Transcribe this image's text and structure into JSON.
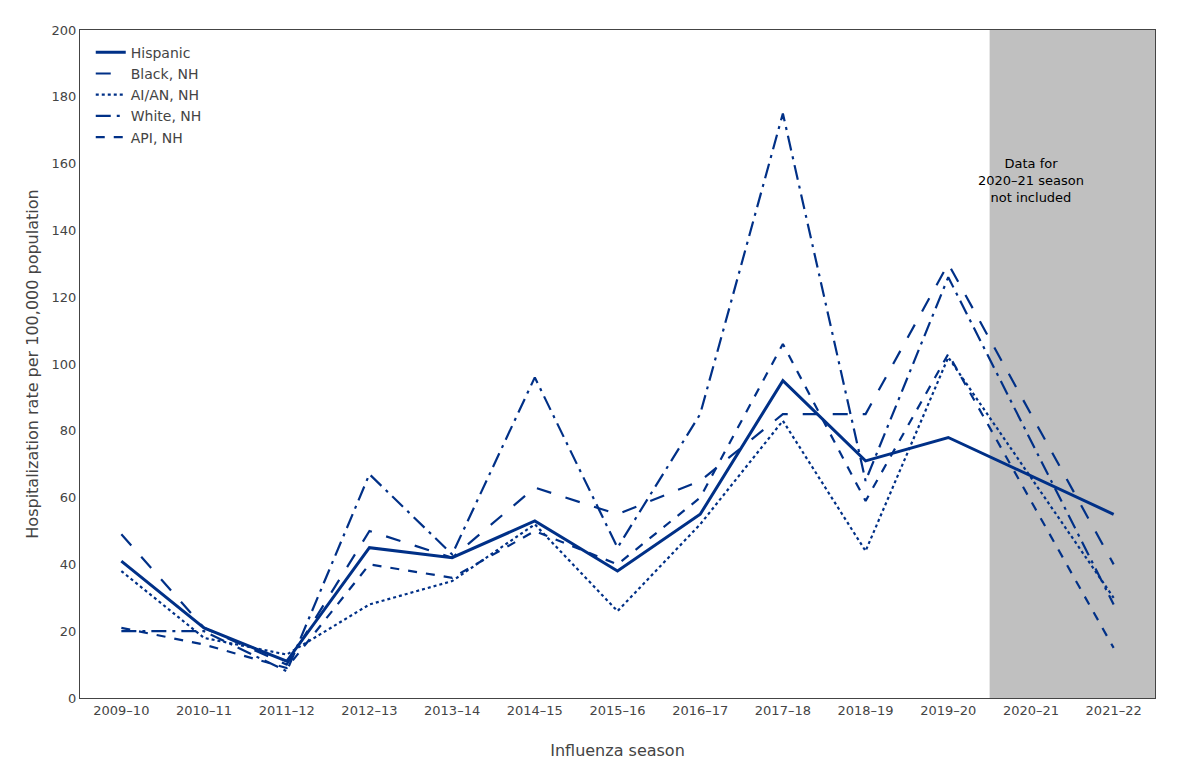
{
  "chart_data": {
    "type": "line",
    "xlabel": "Influenza season",
    "ylabel": "Hospitalization rate per 100,000 population",
    "categories": [
      "2009–10",
      "2010–11",
      "2011–12",
      "2012–13",
      "2013–14",
      "2014–15",
      "2015–16",
      "2016–17",
      "2017–18",
      "2018–19",
      "2019–20",
      "2020–21",
      "2021–22"
    ],
    "series": [
      {
        "name": "Hispanic",
        "color": "#003087",
        "line_style": "solid",
        "values": [
          41,
          21,
          11,
          45,
          42,
          53,
          38,
          55,
          95,
          71,
          78,
          null,
          55
        ]
      },
      {
        "name": "Black, NH",
        "color": "#003087",
        "line_style": "longdash",
        "values": [
          49,
          21,
          10,
          50,
          42,
          63,
          55,
          65,
          85,
          85,
          130,
          null,
          40
        ]
      },
      {
        "name": "AI/AN, NH",
        "color": "#003087",
        "line_style": "dot",
        "values": [
          38,
          18,
          13,
          28,
          35,
          52,
          26,
          52,
          83,
          44,
          102,
          null,
          30
        ]
      },
      {
        "name": "White, NH",
        "color": "#003087",
        "line_style": "longdashdot",
        "values": [
          20,
          20,
          8,
          67,
          43,
          96,
          45,
          85,
          175,
          65,
          126,
          null,
          28
        ]
      },
      {
        "name": "API, NH",
        "color": "#003087",
        "line_style": "dash",
        "values": [
          21,
          16,
          9,
          40,
          36,
          50,
          40,
          60,
          106,
          59,
          103,
          null,
          15
        ]
      }
    ],
    "ylim": [
      0,
      200
    ],
    "yticks": [
      0,
      20,
      40,
      60,
      80,
      100,
      120,
      140,
      160,
      180,
      200
    ],
    "annotations": [
      {
        "text": "Data for\n2020–21 season\nnot included",
        "x": "2020–21",
        "y": 155,
        "color": "#C0C0C0"
      }
    ],
    "legend": "upper left",
    "grid": false
  }
}
